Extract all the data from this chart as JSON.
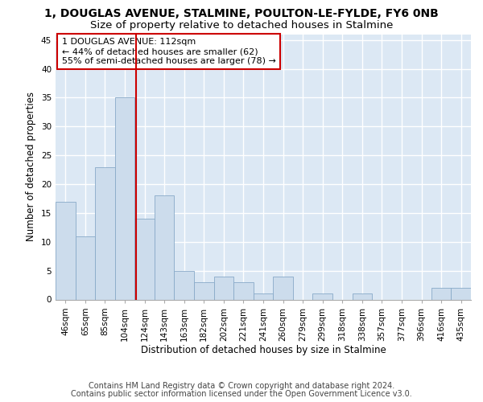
{
  "title": "1, DOUGLAS AVENUE, STALMINE, POULTON-LE-FYLDE, FY6 0NB",
  "subtitle": "Size of property relative to detached houses in Stalmine",
  "xlabel": "Distribution of detached houses by size in Stalmine",
  "ylabel": "Number of detached properties",
  "categories": [
    "46sqm",
    "65sqm",
    "85sqm",
    "104sqm",
    "124sqm",
    "143sqm",
    "163sqm",
    "182sqm",
    "202sqm",
    "221sqm",
    "241sqm",
    "260sqm",
    "279sqm",
    "299sqm",
    "318sqm",
    "338sqm",
    "357sqm",
    "377sqm",
    "396sqm",
    "416sqm",
    "435sqm"
  ],
  "values": [
    17,
    11,
    23,
    35,
    14,
    18,
    5,
    3,
    4,
    3,
    1,
    4,
    0,
    1,
    0,
    1,
    0,
    0,
    0,
    2,
    2
  ],
  "bar_color": "#ccdcec",
  "bar_edge_color": "#88aac8",
  "bar_linewidth": 0.6,
  "red_line_x": 3.55,
  "annotation_text": "1 DOUGLAS AVENUE: 112sqm\n← 44% of detached houses are smaller (62)\n55% of semi-detached houses are larger (78) →",
  "annotation_box_color": "#ffffff",
  "annotation_box_edge_color": "#cc0000",
  "bg_color": "#dce8f4",
  "grid_color": "#ffffff",
  "ylim": [
    0,
    46
  ],
  "yticks": [
    0,
    5,
    10,
    15,
    20,
    25,
    30,
    35,
    40,
    45
  ],
  "footer_line1": "Contains HM Land Registry data © Crown copyright and database right 2024.",
  "footer_line2": "Contains public sector information licensed under the Open Government Licence v3.0.",
  "title_fontsize": 10,
  "subtitle_fontsize": 9.5,
  "axis_label_fontsize": 8.5,
  "tick_fontsize": 7.5,
  "annotation_fontsize": 8,
  "footer_fontsize": 7
}
